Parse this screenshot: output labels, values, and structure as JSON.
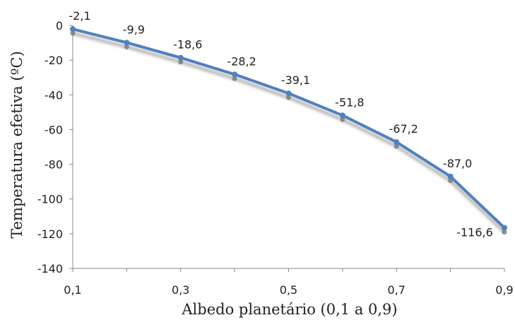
{
  "chart_data": {
    "type": "line",
    "xlabel": "Albedo planetário (0,1 a 0,9)",
    "ylabel": "Temperatura efetiva (ºC)",
    "x": [
      0.1,
      0.2,
      0.3,
      0.4,
      0.5,
      0.6,
      0.7,
      0.8,
      0.9
    ],
    "series": [
      {
        "values": [
          -2.1,
          -9.9,
          -18.6,
          -28.2,
          -39.1,
          -51.8,
          -67.2,
          -87.0,
          -116.6
        ],
        "labels": [
          "-2,1",
          "-9,9",
          "-18,6",
          "-28,2",
          "-39,1",
          "-51,8",
          "-67,2",
          "-87,0",
          "-116,6"
        ],
        "color": "#4f81bd"
      }
    ],
    "xlim": [
      0.1,
      0.9
    ],
    "ylim": [
      -140,
      0
    ],
    "x_ticks": [
      "0,1",
      "0,3",
      "0,5",
      "0,7",
      "0,9"
    ],
    "x_tick_values": [
      0.1,
      0.3,
      0.5,
      0.7,
      0.9
    ],
    "y_ticks": [
      "0",
      "-20",
      "-40",
      "-60",
      "-80",
      "-100",
      "-120",
      "-140"
    ],
    "y_tick_values": [
      0,
      -20,
      -40,
      -60,
      -80,
      -100,
      -120,
      -140
    ],
    "grid": false,
    "legend": "none"
  }
}
